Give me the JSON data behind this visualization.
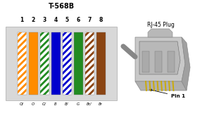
{
  "title": "T-568B",
  "pin_labels": [
    "1",
    "2",
    "3",
    "4",
    "5",
    "6",
    "7",
    "8"
  ],
  "wire_labels": [
    "O/",
    "O",
    "G/",
    "B",
    "B/",
    "G",
    "Br/",
    "Br"
  ],
  "background_color": "#e8e8e8",
  "panel_bg": "#d8d8d8",
  "fig_bg": "#ffffff",
  "wires": [
    {
      "solid": "#ffffff",
      "stripe_color": "#ff8c00"
    },
    {
      "solid": "#ff8c00",
      "stripe_color": null
    },
    {
      "solid": "#ffffff",
      "stripe_color": "#228B22"
    },
    {
      "solid": "#0000cd",
      "stripe_color": null
    },
    {
      "solid": "#ffffff",
      "stripe_color": "#0000cd"
    },
    {
      "solid": "#228B22",
      "stripe_color": null
    },
    {
      "solid": "#ffffff",
      "stripe_color": "#8B4513"
    },
    {
      "solid": "#8B4513",
      "stripe_color": null
    }
  ],
  "rj45_label": "RJ-45 Plug",
  "pin1_label": "Pin 1"
}
